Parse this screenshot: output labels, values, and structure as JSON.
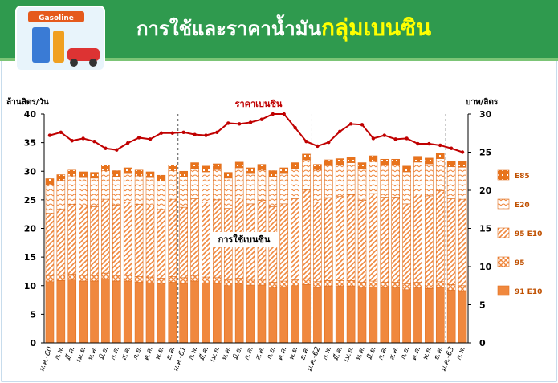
{
  "header": {
    "title": "การใช้และราคาน้ำมัน",
    "title_highlight": "กลุ่มเบนซิน",
    "icon_label": "Gasoline"
  },
  "chart_data": {
    "type": "bar-line",
    "y_label": "ล้านลิตร/วัน",
    "y2_label": "บาท/ลิตร",
    "annotations": [
      "ราคาเบนซิน",
      "การใช้เบนซิน"
    ],
    "categories": [
      "ม.ค.-60",
      "ก.พ.",
      "มี.ค.",
      "เม.ย.",
      "พ.ค.",
      "มิ.ย.",
      "ก.ค.",
      "ส.ค.",
      "ก.ย.",
      "ต.ค.",
      "พ.ย.",
      "ธ.ค.",
      "ม.ค.-61",
      "ก.พ.",
      "มี.ค.",
      "เม.ย.",
      "พ.ค.",
      "มิ.ย.",
      "ก.ค.",
      "ส.ค.",
      "ก.ย.",
      "ต.ค.",
      "พ.ย.",
      "ธ.ค.",
      "ม.ค.-62",
      "ก.พ.",
      "มี.ค.",
      "เม.ย.",
      "พ.ค.",
      "มิ.ย.",
      "ก.ค.",
      "ส.ค.",
      "ก.ย.",
      "ต.ค.",
      "พ.ย.",
      "ธ.ค.",
      "ม.ค.-63",
      "ก.พ."
    ],
    "series": [
      {
        "name": "91 E10",
        "color": "#f0883e",
        "values": [
          10.7,
          10.9,
          11.0,
          10.8,
          10.8,
          11.2,
          10.8,
          10.8,
          10.6,
          10.5,
          10.3,
          10.6,
          10.4,
          10.8,
          10.5,
          10.4,
          10.0,
          10.3,
          10.1,
          10.1,
          9.6,
          9.8,
          10.0,
          10.2,
          9.7,
          9.9,
          9.9,
          9.9,
          9.6,
          9.8,
          9.6,
          9.6,
          9.3,
          9.6,
          9.5,
          9.7,
          9.2,
          9.0
        ]
      },
      {
        "name": "95",
        "color": "#f0883e",
        "values": [
          1.0,
          1.0,
          1.0,
          1.0,
          1.0,
          1.0,
          1.0,
          1.0,
          1.0,
          1.0,
          1.0,
          1.0,
          1.0,
          1.0,
          1.0,
          1.0,
          1.0,
          1.0,
          1.0,
          1.0,
          1.0,
          1.0,
          1.0,
          1.0,
          1.0,
          1.0,
          1.0,
          1.0,
          1.0,
          1.0,
          1.0,
          1.0,
          1.0,
          1.0,
          1.0,
          1.0,
          1.0,
          1.0
        ]
      },
      {
        "name": "95 E10",
        "color": "#f0883e",
        "values": [
          11.0,
          11.5,
          12.2,
          12.1,
          12.0,
          12.9,
          12.3,
          12.8,
          12.6,
          12.4,
          12.0,
          13.5,
          12.3,
          13.4,
          13.1,
          13.6,
          12.5,
          14.0,
          13.2,
          13.8,
          13.2,
          13.5,
          14.2,
          15.5,
          13.9,
          14.5,
          14.7,
          15.0,
          14.3,
          15.3,
          14.9,
          14.9,
          14.0,
          15.4,
          15.2,
          15.9,
          15.0,
          15.1
        ]
      },
      {
        "name": "E20",
        "color": "#f0883e",
        "values": [
          5.0,
          5.0,
          5.0,
          5.0,
          5.0,
          5.0,
          5.0,
          5.0,
          5.0,
          5.0,
          5.0,
          5.0,
          5.3,
          5.3,
          5.3,
          5.3,
          5.3,
          5.3,
          5.3,
          5.3,
          5.3,
          5.3,
          5.3,
          5.3,
          5.6,
          5.6,
          5.6,
          5.6,
          5.6,
          5.6,
          5.6,
          5.6,
          5.6,
          5.6,
          5.6,
          5.6,
          5.6,
          5.6
        ]
      },
      {
        "name": "E85",
        "color": "#e8731c",
        "values": [
          1.0,
          1.0,
          1.0,
          1.0,
          1.0,
          1.0,
          1.0,
          1.0,
          1.0,
          1.0,
          1.0,
          1.0,
          1.0,
          1.0,
          1.0,
          1.0,
          1.0,
          1.0,
          1.0,
          1.0,
          1.0,
          1.0,
          1.0,
          1.0,
          1.0,
          1.0,
          1.0,
          1.0,
          1.0,
          1.0,
          1.0,
          1.0,
          1.0,
          1.0,
          1.0,
          1.0,
          1.0,
          1.0
        ]
      },
      {
        "name": "ราคาเบนซิน",
        "color": "#c00000",
        "axis": "y2",
        "values": [
          27.2,
          27.6,
          26.5,
          26.8,
          26.4,
          25.5,
          25.3,
          26.2,
          26.9,
          26.7,
          27.5,
          27.5,
          27.6,
          27.3,
          27.2,
          27.6,
          28.8,
          28.7,
          28.9,
          29.3,
          30.0,
          30.0,
          28.2,
          26.4,
          25.8,
          26.3,
          27.7,
          28.7,
          28.6,
          26.8,
          27.2,
          26.7,
          26.8,
          26.1,
          26.1,
          25.9,
          25.5,
          25.0
        ]
      }
    ],
    "ylim": [
      0,
      40
    ],
    "yticks": [
      0,
      5,
      10,
      15,
      20,
      25,
      30,
      35,
      40
    ],
    "y2lim": [
      0,
      30
    ],
    "y2ticks": [
      0,
      5,
      10,
      15,
      20,
      25,
      30
    ]
  }
}
